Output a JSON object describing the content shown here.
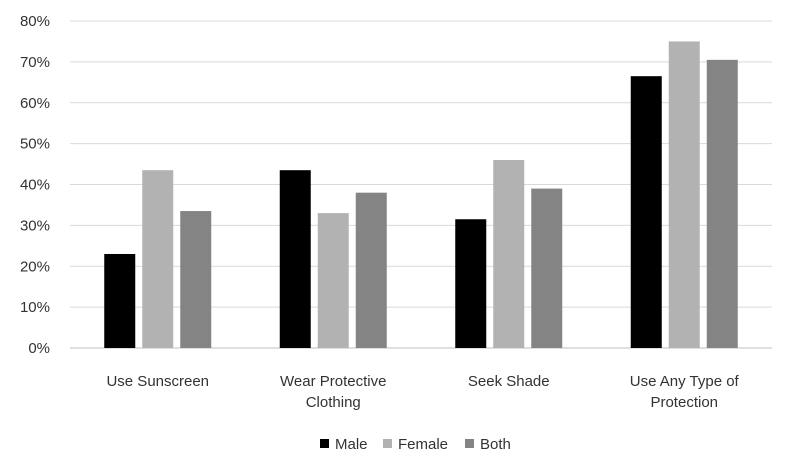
{
  "chart_data": {
    "type": "bar",
    "categories": [
      [
        "Use Sunscreen"
      ],
      [
        "Wear Protective",
        "Clothing"
      ],
      [
        "Seek Shade"
      ],
      [
        "Use Any Type of",
        "Protection"
      ]
    ],
    "series": [
      {
        "name": "Male",
        "color": "#000000",
        "values": [
          23,
          43.5,
          31.5,
          66.5
        ]
      },
      {
        "name": "Female",
        "color": "#b2b2b2",
        "values": [
          43.5,
          33,
          46,
          75
        ]
      },
      {
        "name": "Both",
        "color": "#848484",
        "values": [
          33.5,
          38,
          39,
          70.5
        ]
      }
    ],
    "y_ticks": [
      "0%",
      "10%",
      "20%",
      "30%",
      "40%",
      "50%",
      "60%",
      "70%",
      "80%"
    ],
    "ylim": [
      0,
      80
    ],
    "grid": true,
    "legend_position": "bottom"
  }
}
